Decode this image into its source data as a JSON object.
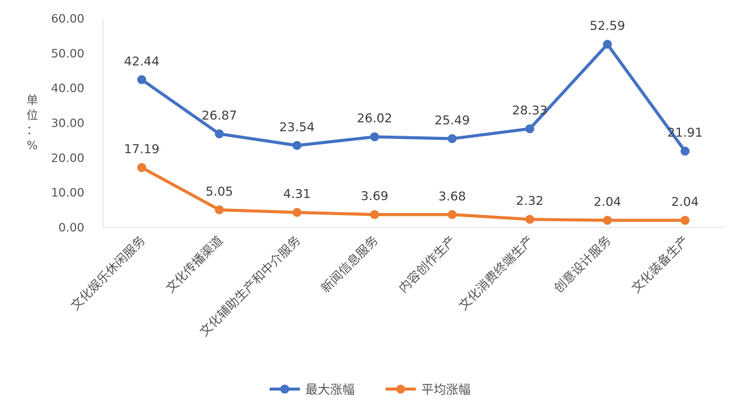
{
  "chart_data": {
    "type": "line",
    "categories": [
      "文化娱乐休闲服务",
      "文化传播渠道",
      "文化辅助生产和中介服务",
      "新闻信息服务",
      "内容创作生产",
      "文化消费终端生产",
      "创意设计服务",
      "文化装备生产"
    ],
    "series": [
      {
        "name": "最大涨幅",
        "color": "#4472c4",
        "values": [
          42.44,
          26.87,
          23.54,
          26.02,
          25.49,
          28.33,
          52.59,
          21.91
        ],
        "labels": [
          "42.44",
          "26.87",
          "23.54",
          "26.02",
          "25.49",
          "28.33",
          "52.59",
          "21.91"
        ]
      },
      {
        "name": "平均涨幅",
        "color": "#ed7d31",
        "values": [
          17.19,
          5.05,
          4.31,
          3.69,
          3.68,
          2.32,
          2.04,
          2.04
        ],
        "labels": [
          "17.19",
          "5.05",
          "4.31",
          "3.69",
          "3.68",
          "2.32",
          "2.04",
          "2.04"
        ]
      }
    ],
    "ylabel": "单位：%",
    "ylim": [
      0,
      60
    ],
    "yticks": [
      "0.00",
      "10.00",
      "20.00",
      "30.00",
      "40.00",
      "50.00",
      "60.00"
    ],
    "grid": false,
    "legend": "bottom"
  }
}
